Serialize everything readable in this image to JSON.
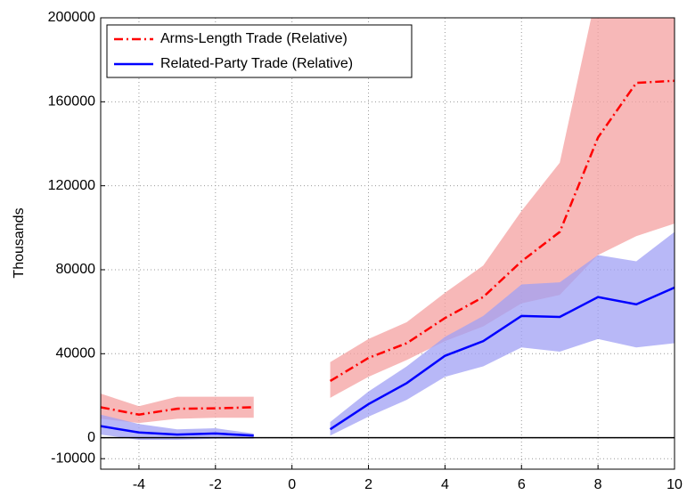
{
  "chart_data": {
    "type": "line",
    "y_label": "Thousands",
    "x": [
      -5,
      -4,
      -3,
      -2,
      -1,
      0,
      1,
      2,
      3,
      4,
      5,
      6,
      7,
      8,
      9,
      10
    ],
    "xlim": [
      -5,
      10
    ],
    "xticks": [
      -4,
      -2,
      0,
      2,
      4,
      6,
      8,
      10
    ],
    "ylim": [
      -15000,
      200000
    ],
    "yticks": [
      -10000,
      0,
      40000,
      80000,
      120000,
      160000,
      200000
    ],
    "grid": true,
    "legend": "upper left",
    "series": [
      {
        "name": "Arms-Length Trade (Relative)",
        "color": "#ff0000",
        "band_color": "#f4a0a0",
        "dash": "dashdot",
        "values": [
          14500,
          11000,
          13800,
          14000,
          14500,
          null,
          27000,
          38000,
          45000,
          57000,
          67000,
          84000,
          98000,
          143000,
          169000,
          170000
        ],
        "lower": [
          9000,
          7000,
          9000,
          9500,
          9500,
          null,
          19000,
          29000,
          37000,
          46000,
          53000,
          64000,
          68000,
          87000,
          96000,
          102000
        ],
        "upper": [
          21000,
          15000,
          19500,
          19500,
          19500,
          null,
          36000,
          47000,
          55000,
          69000,
          82000,
          108000,
          131000,
          215000,
          240000,
          245000
        ]
      },
      {
        "name": "Related-Party Trade (Relative)",
        "color": "#0000ff",
        "band_color": "#a0a0f4",
        "dash": "solid",
        "values": [
          5500,
          2500,
          1500,
          2000,
          1000,
          null,
          4000,
          16000,
          26000,
          39000,
          46000,
          58000,
          57500,
          67000,
          63500,
          71500
        ],
        "lower": [
          1500,
          -1000,
          -1000,
          -500,
          -500,
          null,
          1000,
          10000,
          18000,
          29000,
          34000,
          43000,
          41000,
          47000,
          43000,
          45000
        ],
        "upper": [
          11000,
          6500,
          4000,
          4500,
          2000,
          null,
          7500,
          22000,
          34000,
          48000,
          58000,
          73000,
          74000,
          87000,
          84000,
          98000
        ]
      }
    ]
  }
}
